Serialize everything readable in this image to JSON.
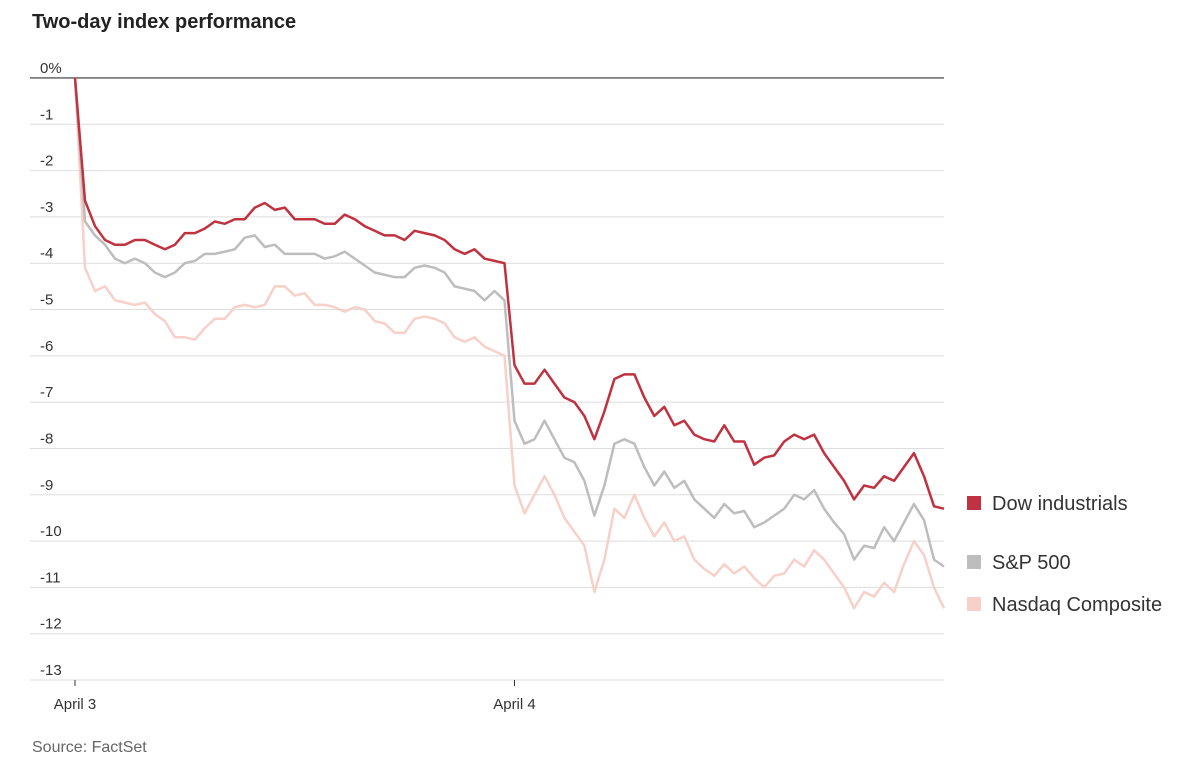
{
  "chart_data": {
    "type": "line",
    "title": "Two-day index performance",
    "source": "Source: FactSet",
    "categories": [
      "April 3",
      null,
      null,
      null,
      null,
      null,
      null,
      null,
      null,
      null,
      null,
      null,
      null,
      null,
      null,
      null,
      null,
      null,
      null,
      null,
      null,
      null,
      null,
      null,
      null,
      null,
      null,
      null,
      null,
      null,
      null,
      null,
      null,
      null,
      null,
      null,
      null,
      null,
      null,
      null,
      null,
      null,
      null,
      null,
      "April 4",
      null,
      null,
      null,
      null,
      null,
      null,
      null,
      null,
      null,
      null,
      null,
      null,
      null,
      null,
      null,
      null,
      null,
      null,
      null,
      null,
      null,
      null,
      null,
      null,
      null,
      null,
      null,
      null,
      null,
      null,
      null,
      null,
      null,
      null,
      null,
      null,
      null,
      null,
      null,
      null,
      null,
      null,
      null
    ],
    "series": [
      {
        "name": "Dow industrials",
        "color": "#c0323f",
        "values": [
          0,
          -2.65,
          -3.2,
          -3.5,
          -3.6,
          -3.6,
          -3.5,
          -3.5,
          -3.6,
          -3.7,
          -3.6,
          -3.35,
          -3.35,
          -3.25,
          -3.1,
          -3.15,
          -3.05,
          -3.05,
          -2.8,
          -2.7,
          -2.85,
          -2.8,
          -3.05,
          -3.05,
          -3.05,
          -3.15,
          -3.15,
          -2.95,
          -3.05,
          -3.2,
          -3.3,
          -3.4,
          -3.4,
          -3.5,
          -3.3,
          -3.35,
          -3.4,
          -3.5,
          -3.7,
          -3.8,
          -3.7,
          -3.9,
          -3.95,
          -4.0,
          -6.2,
          -6.6,
          -6.6,
          -6.3,
          -6.6,
          -6.9,
          -7.0,
          -7.3,
          -7.8,
          -7.2,
          -6.5,
          -6.4,
          -6.4,
          -6.9,
          -7.3,
          -7.1,
          -7.5,
          -7.4,
          -7.7,
          -7.8,
          -7.85,
          -7.5,
          -7.85,
          -7.85,
          -8.35,
          -8.2,
          -8.15,
          -7.85,
          -7.7,
          -7.8,
          -7.7,
          -8.1,
          -8.4,
          -8.7,
          -9.1,
          -8.8,
          -8.85,
          -8.6,
          -8.7,
          -8.4,
          -8.1,
          -8.6,
          -9.25,
          -9.3
        ]
      },
      {
        "name": "S&P 500",
        "color": "#bdbdbd",
        "values": [
          0,
          -3.1,
          -3.4,
          -3.6,
          -3.9,
          -4.0,
          -3.9,
          -4.0,
          -4.2,
          -4.3,
          -4.2,
          -4.0,
          -3.95,
          -3.8,
          -3.8,
          -3.75,
          -3.7,
          -3.45,
          -3.4,
          -3.65,
          -3.6,
          -3.8,
          -3.8,
          -3.8,
          -3.8,
          -3.9,
          -3.85,
          -3.75,
          -3.9,
          -4.05,
          -4.2,
          -4.25,
          -4.3,
          -4.3,
          -4.1,
          -4.05,
          -4.1,
          -4.2,
          -4.5,
          -4.55,
          -4.6,
          -4.8,
          -4.6,
          -4.8,
          -7.4,
          -7.9,
          -7.8,
          -7.4,
          -7.8,
          -8.2,
          -8.3,
          -8.7,
          -9.45,
          -8.8,
          -7.9,
          -7.8,
          -7.9,
          -8.4,
          -8.8,
          -8.5,
          -8.85,
          -8.7,
          -9.1,
          -9.3,
          -9.5,
          -9.2,
          -9.4,
          -9.35,
          -9.7,
          -9.6,
          -9.45,
          -9.3,
          -9.0,
          -9.1,
          -8.9,
          -9.3,
          -9.6,
          -9.85,
          -10.4,
          -10.1,
          -10.15,
          -9.7,
          -10.0,
          -9.6,
          -9.2,
          -9.55,
          -10.4,
          -10.55
        ]
      },
      {
        "name": "Nasdaq Composite",
        "color": "#f7d0c8",
        "values": [
          0,
          -4.1,
          -4.6,
          -4.5,
          -4.8,
          -4.85,
          -4.9,
          -4.85,
          -5.1,
          -5.25,
          -5.6,
          -5.6,
          -5.65,
          -5.4,
          -5.2,
          -5.2,
          -4.95,
          -4.9,
          -4.95,
          -4.9,
          -4.5,
          -4.5,
          -4.7,
          -4.65,
          -4.9,
          -4.9,
          -4.95,
          -5.05,
          -4.95,
          -5.0,
          -5.25,
          -5.3,
          -5.5,
          -5.5,
          -5.2,
          -5.15,
          -5.2,
          -5.3,
          -5.6,
          -5.7,
          -5.6,
          -5.8,
          -5.9,
          -6.0,
          -8.8,
          -9.4,
          -9.0,
          -8.6,
          -9.0,
          -9.5,
          -9.8,
          -10.1,
          -11.1,
          -10.4,
          -9.3,
          -9.5,
          -9.0,
          -9.5,
          -9.9,
          -9.6,
          -10.0,
          -9.9,
          -10.4,
          -10.6,
          -10.75,
          -10.5,
          -10.7,
          -10.55,
          -10.8,
          -11.0,
          -10.75,
          -10.7,
          -10.4,
          -10.55,
          -10.2,
          -10.4,
          -10.7,
          -11.0,
          -11.45,
          -11.1,
          -11.2,
          -10.9,
          -11.1,
          -10.5,
          -10.0,
          -10.3,
          -11.0,
          -11.45
        ]
      }
    ],
    "ylim": [
      -13,
      0.2
    ],
    "yticks": [
      {
        "value": 0,
        "label": "0%"
      },
      -1,
      -2,
      -3,
      -4,
      -5,
      -6,
      -7,
      -8,
      -9,
      -10,
      -11,
      -12,
      -13
    ],
    "grid": true,
    "legend": "right"
  }
}
